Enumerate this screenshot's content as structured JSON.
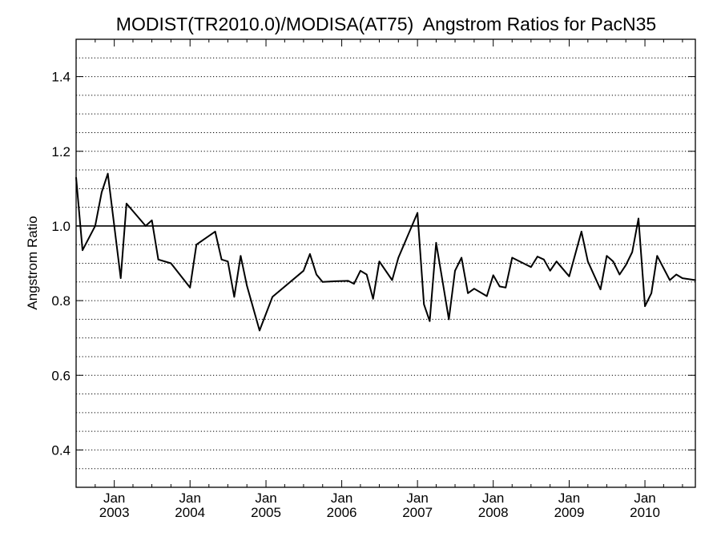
{
  "chart_data": {
    "type": "line",
    "title": "MODIST(TR2010.0)/MODISA(AT75)  Angstrom Ratios for PacN35",
    "xlabel": "",
    "ylabel": "Angstrom Ratio",
    "ylim": [
      0.3,
      1.5
    ],
    "xlim": [
      "2002-07-01",
      "2010-09-01"
    ],
    "y_ticks": [
      0.4,
      0.6,
      0.8,
      1.0,
      1.2,
      1.4
    ],
    "y_tick_labels": [
      "0.4",
      "0.6",
      "0.8",
      "1.0",
      "1.2",
      "1.4"
    ],
    "x_ticks": [
      "2003-01-01",
      "2004-01-01",
      "2005-01-01",
      "2006-01-01",
      "2007-01-01",
      "2008-01-01",
      "2009-01-01",
      "2010-01-01"
    ],
    "x_tick_labels": [
      [
        "Jan",
        "2003"
      ],
      [
        "Jan",
        "2004"
      ],
      [
        "Jan",
        "2005"
      ],
      [
        "Jan",
        "2006"
      ],
      [
        "Jan",
        "2007"
      ],
      [
        "Jan",
        "2008"
      ],
      [
        "Jan",
        "2009"
      ],
      [
        "Jan",
        "2010"
      ]
    ],
    "grid": "horizontal dotted",
    "reference_line": 1.0,
    "colors": {
      "line": "#000000",
      "grid": "#000000",
      "background": "#ffffff"
    },
    "series": [
      {
        "x": [
          "2002-07-01",
          "2002-08-01",
          "2002-10-01",
          "2002-11-01",
          "2002-12-01",
          "2003-02-01",
          "2003-03-01",
          "2003-06-01",
          "2003-07-01",
          "2003-08-01",
          "2003-10-01",
          "2004-01-01",
          "2004-02-01",
          "2004-05-01",
          "2004-06-01",
          "2004-07-01",
          "2004-08-01",
          "2004-09-01",
          "2004-10-01",
          "2004-12-01",
          "2005-02-01",
          "2005-07-01",
          "2005-08-01",
          "2005-09-01",
          "2005-10-01",
          "2005-12-01",
          "2006-02-01",
          "2006-03-01",
          "2006-04-01",
          "2006-05-01",
          "2006-06-01",
          "2006-07-01",
          "2006-09-01",
          "2006-10-01",
          "2007-01-01",
          "2007-02-01",
          "2007-03-01",
          "2007-04-01",
          "2007-05-01",
          "2007-06-01",
          "2007-07-01",
          "2007-08-01",
          "2007-09-01",
          "2007-10-01",
          "2007-12-01",
          "2008-01-01",
          "2008-02-01",
          "2008-03-01",
          "2008-04-01",
          "2008-06-01",
          "2008-07-01",
          "2008-08-01",
          "2008-09-01",
          "2008-10-01",
          "2008-11-01",
          "2009-01-01",
          "2009-03-01",
          "2009-04-01",
          "2009-06-01",
          "2009-07-01",
          "2009-08-01",
          "2009-09-01",
          "2009-10-01",
          "2009-11-01",
          "2009-12-01",
          "2010-01-01",
          "2010-02-01",
          "2010-03-01",
          "2010-05-01",
          "2010-06-01",
          "2010-07-01",
          "2010-09-01"
        ],
        "y": [
          1.13,
          0.935,
          1.0,
          1.09,
          1.14,
          0.86,
          1.06,
          1.0,
          1.015,
          0.91,
          0.9,
          0.835,
          0.95,
          0.985,
          0.91,
          0.905,
          0.81,
          0.92,
          0.84,
          0.72,
          0.81,
          0.88,
          0.925,
          0.87,
          0.85,
          0.852,
          0.853,
          0.845,
          0.88,
          0.87,
          0.805,
          0.905,
          0.855,
          0.915,
          1.035,
          0.79,
          0.745,
          0.955,
          0.855,
          0.75,
          0.88,
          0.915,
          0.82,
          0.832,
          0.812,
          0.868,
          0.838,
          0.835,
          0.915,
          0.898,
          0.89,
          0.918,
          0.91,
          0.88,
          0.905,
          0.865,
          0.985,
          0.905,
          0.83,
          0.92,
          0.905,
          0.87,
          0.895,
          0.93,
          1.02,
          0.785,
          0.82,
          0.92,
          0.855,
          0.87,
          0.86,
          0.855
        ]
      }
    ]
  }
}
